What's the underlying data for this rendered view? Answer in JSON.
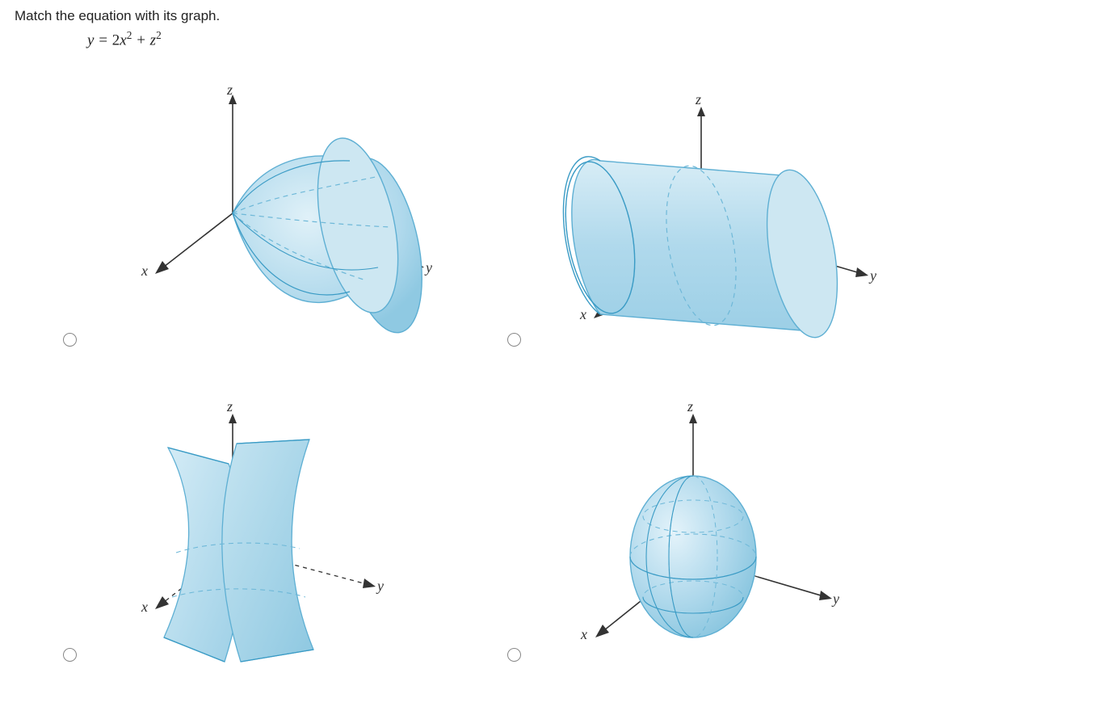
{
  "question": "Match the equation with its graph.",
  "equation_html": "y = <span class='eq-num'>2</span>x<sup>2</sup> + z<sup>2</sup>",
  "axes": {
    "x": "x",
    "y": "y",
    "z": "z"
  },
  "surface_fill": "#b9dcec",
  "surface_fill_light": "#cde7f2",
  "surface_stroke": "#5eafd3",
  "surface_stroke_dark": "#3a9bc5",
  "axis_color": "#333333",
  "dashed_color": "#6eb8d8",
  "background": "#ffffff",
  "options": [
    {
      "name": "paraboloid",
      "selected": false
    },
    {
      "name": "cylinder",
      "selected": false
    },
    {
      "name": "hyperbolic-sheet",
      "selected": false
    },
    {
      "name": "ellipsoid",
      "selected": false
    }
  ]
}
